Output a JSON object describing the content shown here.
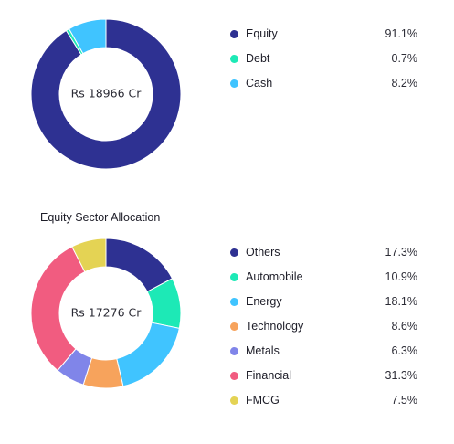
{
  "chart_data": [
    {
      "type": "pie",
      "title": "",
      "center_label": "Rs 18966 Cr",
      "slices": [
        {
          "name": "Equity",
          "value": 91.1,
          "label": "91.1%",
          "color": "#2e3192"
        },
        {
          "name": "Debt",
          "value": 0.7,
          "label": "0.7%",
          "color": "#1de9b6"
        },
        {
          "name": "Cash",
          "value": 8.2,
          "label": "8.2%",
          "color": "#40c4ff"
        }
      ]
    },
    {
      "type": "pie",
      "title": "Equity Sector Allocation",
      "center_label": "Rs 17276 Cr",
      "slices": [
        {
          "name": "Others",
          "value": 17.3,
          "label": "17.3%",
          "color": "#2e3192"
        },
        {
          "name": "Automobile",
          "value": 10.9,
          "label": "10.9%",
          "color": "#1de9b6"
        },
        {
          "name": "Energy",
          "value": 18.1,
          "label": "18.1%",
          "color": "#40c4ff"
        },
        {
          "name": "Technology",
          "value": 8.6,
          "label": "8.6%",
          "color": "#f7a35c"
        },
        {
          "name": "Metals",
          "value": 6.3,
          "label": "6.3%",
          "color": "#8085e9"
        },
        {
          "name": "Financial",
          "value": 31.3,
          "label": "31.3%",
          "color": "#f15c80"
        },
        {
          "name": "FMCG",
          "value": 7.5,
          "label": "7.5%",
          "color": "#e4d354"
        }
      ]
    }
  ]
}
